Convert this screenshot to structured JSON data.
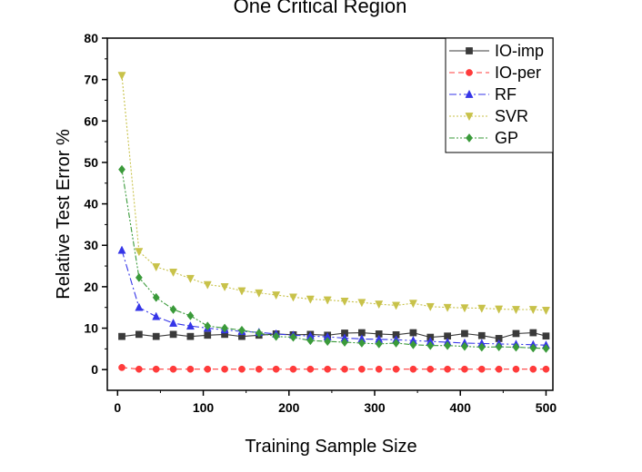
{
  "chart_data": {
    "type": "line",
    "title": "One Critical Region",
    "xlabel": "Training Sample Size",
    "ylabel": "Relative Test Error %",
    "xlim": [
      -12,
      508
    ],
    "ylim": [
      -5,
      80
    ],
    "xticks": [
      0,
      100,
      200,
      300,
      400,
      500
    ],
    "xtick_labels": [
      "0",
      "100",
      "200",
      "300",
      "400",
      "500"
    ],
    "yticks": [
      0,
      10,
      20,
      30,
      40,
      50,
      60,
      70,
      80
    ],
    "ytick_labels": [
      "0",
      "10",
      "20",
      "30",
      "40",
      "50",
      "60",
      "70",
      "80"
    ],
    "legend_position": "top-right",
    "x": [
      5,
      25,
      45,
      65,
      85,
      105,
      125,
      145,
      165,
      185,
      205,
      225,
      245,
      265,
      285,
      305,
      325,
      345,
      365,
      385,
      405,
      425,
      445,
      465,
      485,
      500
    ],
    "series": [
      {
        "name": "IO-imp",
        "color": "#3a3a3a",
        "marker": "square",
        "dash": "",
        "values": [
          8.0,
          8.5,
          8.0,
          8.5,
          8.0,
          8.3,
          8.5,
          8.0,
          8.3,
          8.6,
          8.4,
          8.5,
          8.3,
          8.8,
          8.9,
          8.6,
          8.4,
          8.9,
          7.8,
          8.1,
          8.7,
          8.2,
          7.5,
          8.7,
          8.9,
          8.1
        ]
      },
      {
        "name": "IO-per",
        "color": "#ff3b3b",
        "marker": "circle",
        "dash": "6,4",
        "values": [
          0.5,
          0.1,
          0.1,
          0.1,
          0.1,
          0.1,
          0.1,
          0.1,
          0.1,
          0.1,
          0.1,
          0.1,
          0.1,
          0.1,
          0.1,
          0.1,
          0.1,
          0.1,
          0.1,
          0.1,
          0.1,
          0.1,
          0.1,
          0.1,
          0.1,
          0.1
        ]
      },
      {
        "name": "RF",
        "color": "#3535e8",
        "marker": "triangle-up",
        "dash": "8,3,2,3",
        "values": [
          28.8,
          15.0,
          12.8,
          11.2,
          10.5,
          10.0,
          9.6,
          9.2,
          9.0,
          8.6,
          8.3,
          8.1,
          7.9,
          7.6,
          7.4,
          7.3,
          7.2,
          7.0,
          6.8,
          6.6,
          6.4,
          6.3,
          6.2,
          6.1,
          6.0,
          5.9
        ]
      },
      {
        "name": "SVR",
        "color": "#c8c24a",
        "marker": "triangle-down",
        "dash": "2,2",
        "values": [
          71.0,
          28.5,
          24.8,
          23.5,
          22.0,
          20.5,
          20.0,
          19.0,
          18.5,
          18.0,
          17.5,
          17.0,
          16.8,
          16.5,
          16.2,
          15.8,
          15.5,
          16.0,
          15.2,
          15.0,
          14.9,
          14.8,
          14.6,
          14.5,
          14.5,
          14.3
        ]
      },
      {
        "name": "GP",
        "color": "#3a9a3a",
        "marker": "diamond",
        "dash": "6,2,2,2,2,2",
        "values": [
          48.3,
          22.2,
          17.4,
          14.5,
          13.0,
          10.5,
          10.0,
          9.5,
          8.8,
          8.0,
          7.8,
          7.0,
          6.8,
          6.6,
          6.4,
          6.2,
          6.4,
          6.0,
          5.8,
          5.8,
          5.6,
          5.4,
          5.5,
          5.4,
          5.2,
          5.1
        ]
      }
    ]
  }
}
